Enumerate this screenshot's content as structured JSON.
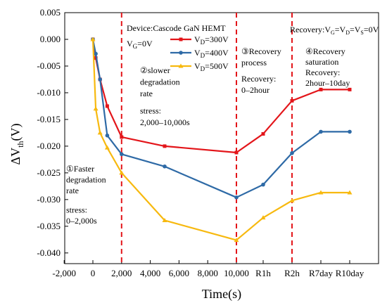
{
  "chart_data": {
    "type": "line",
    "categories": [
      "-2,000",
      "0",
      "2,000",
      "4,000",
      "6,000",
      "8,000",
      "10,000",
      "R1h",
      "R2h",
      "R7day",
      "R10day"
    ],
    "yticks": [
      "0.005",
      "0.000",
      "-0.005",
      "-0.010",
      "-0.015",
      "-0.020",
      "-0.025",
      "-0.030",
      "-0.035",
      "-0.040"
    ],
    "ylim": [
      -0.042,
      0.005
    ],
    "xlabel": "Time(s)",
    "ylabel_main": "ΔV",
    "ylabel_sub": "th",
    "ylabel_unit": "(V)",
    "grid": false,
    "legend_position": "top-center",
    "stage_dividers": [
      2000,
      10000,
      "R2h"
    ],
    "series": [
      {
        "name_main": "V",
        "name_sub": "D",
        "name_rest": "=300V",
        "color": "#e3151a",
        "x": [
          0,
          200,
          500,
          1000,
          2000,
          5000,
          10000,
          "R1h",
          "R2h",
          "R7day",
          "R10day"
        ],
        "values": [
          0.0,
          -0.0035,
          -0.0075,
          -0.0125,
          -0.0183,
          -0.02,
          -0.0212,
          -0.0177,
          -0.0115,
          -0.0094,
          -0.0094
        ]
      },
      {
        "name_main": "V",
        "name_sub": "D",
        "name_rest": "=400V",
        "color": "#2e6aa6",
        "x": [
          0,
          200,
          500,
          1000,
          2000,
          5000,
          10000,
          "R1h",
          "R2h",
          "R7day",
          "R10day"
        ],
        "values": [
          0.0,
          -0.0027,
          -0.0075,
          -0.018,
          -0.0215,
          -0.0238,
          -0.0296,
          -0.0272,
          -0.0213,
          -0.0173,
          -0.0173
        ]
      },
      {
        "name_main": "V",
        "name_sub": "D",
        "name_rest": "=500V",
        "color": "#f7b90f",
        "x": [
          0,
          200,
          500,
          1000,
          2000,
          5000,
          10000,
          "R1h",
          "R2h",
          "R7day",
          "R10day"
        ],
        "values": [
          0.0,
          -0.013,
          -0.0175,
          -0.0203,
          -0.025,
          -0.0339,
          -0.0376,
          -0.0334,
          -0.0302,
          -0.0287,
          -0.0287
        ]
      }
    ]
  },
  "annotations": {
    "device": "Device:Cascode GaN HEMT",
    "vg_main": "V",
    "vg_sub": "G",
    "vg_rest": "=0V",
    "recovery_cond_1": "Recovery:V",
    "recovery_cond_sub1": "G",
    "recovery_cond_2": "=V",
    "recovery_cond_sub2": "D",
    "recovery_cond_3": "=V",
    "recovery_cond_sub3": "S",
    "recovery_cond_4": "=0V",
    "stage1": [
      "①Faster",
      "degradation",
      "rate",
      "stress:",
      "0–2,000s"
    ],
    "stage2": [
      "②slower",
      "degradation",
      "rate",
      "stress:",
      "2,000–10,000s"
    ],
    "stage3": [
      "③Recovery",
      "process",
      "Recovery:",
      "0–2hour"
    ],
    "stage4": [
      "④Recovery",
      "saturation",
      "Recovery:",
      "2hour–10day"
    ]
  }
}
